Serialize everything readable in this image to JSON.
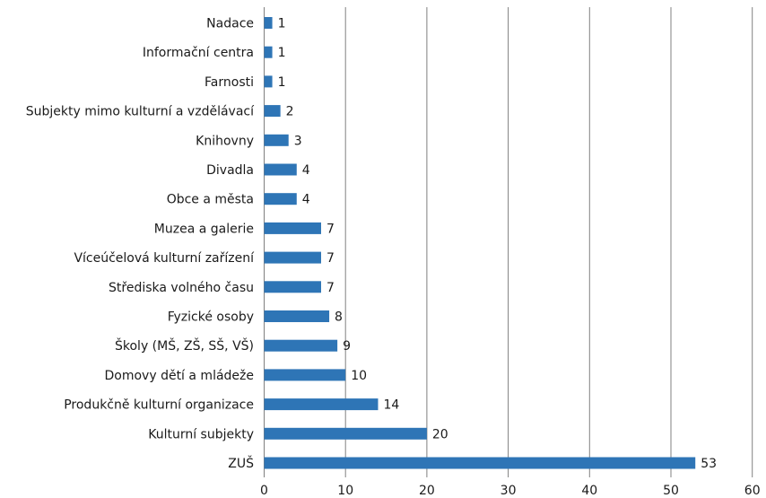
{
  "chart_data": {
    "type": "bar",
    "orientation": "horizontal",
    "categories": [
      "ZUŠ",
      "Kulturní subjekty",
      "Produkčně kulturní organizace",
      "Domovy dětí a mládeže",
      "Školy (MŠ, ZŠ, SŠ, VŠ)",
      "Fyzické osoby",
      "Střediska volného času",
      "Víceúčelová kulturní zařízení",
      "Muzea a galerie",
      "Obce a města",
      "Divadla",
      "Knihovny",
      "Subjekty mimo kulturní a vzdělávací",
      "Farnosti",
      "Informační centra",
      "Nadace"
    ],
    "values": [
      53,
      20,
      14,
      10,
      9,
      8,
      7,
      7,
      7,
      4,
      4,
      3,
      2,
      1,
      1,
      1
    ],
    "x_ticks": [
      0,
      10,
      20,
      30,
      40,
      50,
      60
    ],
    "xlim": [
      0,
      60
    ],
    "title": "",
    "xlabel": "",
    "ylabel": "",
    "grid": "vertical",
    "legend": "none",
    "bar_color": "#2e75b6",
    "grid_color": "#808080"
  }
}
